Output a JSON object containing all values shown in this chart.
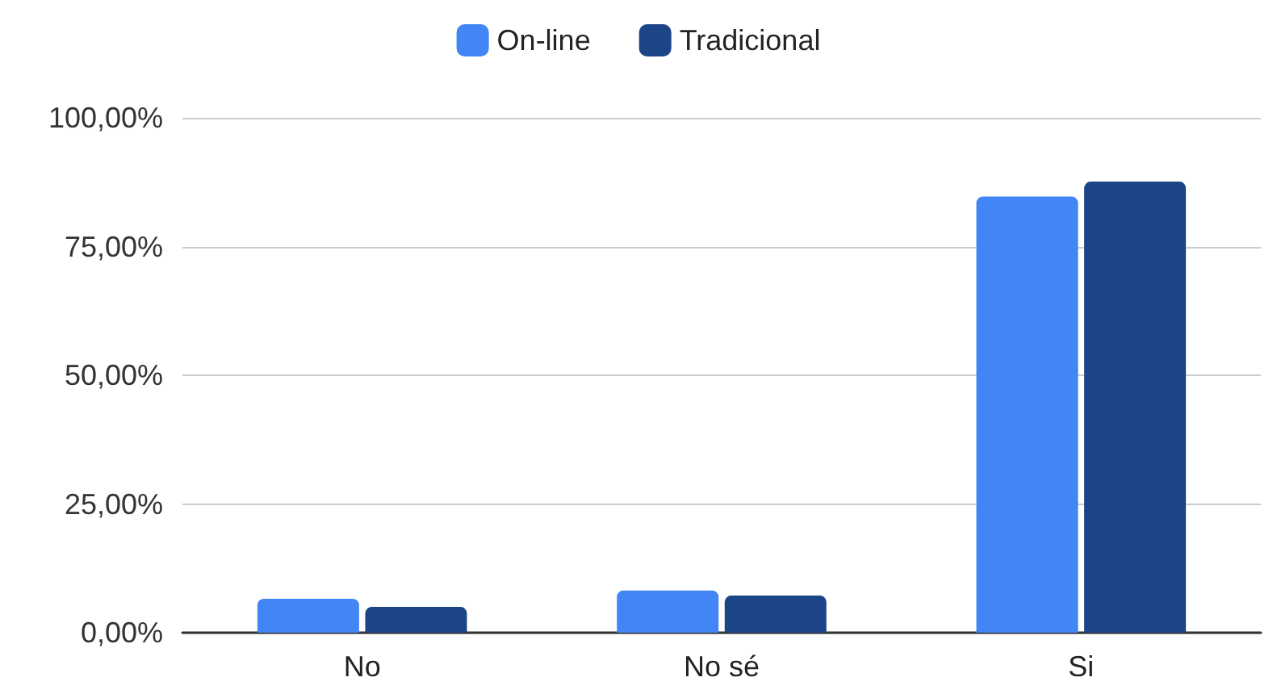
{
  "chart_data": {
    "type": "bar",
    "categories": [
      "No",
      "No sé",
      "Si"
    ],
    "series": [
      {
        "name": "On-line",
        "color": "#4285f4",
        "values": [
          6.6,
          8.2,
          84.7
        ]
      },
      {
        "name": "Tradicional",
        "color": "#1c4587",
        "values": [
          5.0,
          7.2,
          87.6
        ]
      }
    ],
    "ylim": [
      0,
      100
    ],
    "yticks": [
      {
        "value": 0,
        "label": "0,00%"
      },
      {
        "value": 25,
        "label": "25,00%"
      },
      {
        "value": 50,
        "label": "50,00%"
      },
      {
        "value": 75,
        "label": "75,00%"
      },
      {
        "value": 100,
        "label": "100,00%"
      }
    ],
    "grid": "y",
    "legend": "top"
  }
}
